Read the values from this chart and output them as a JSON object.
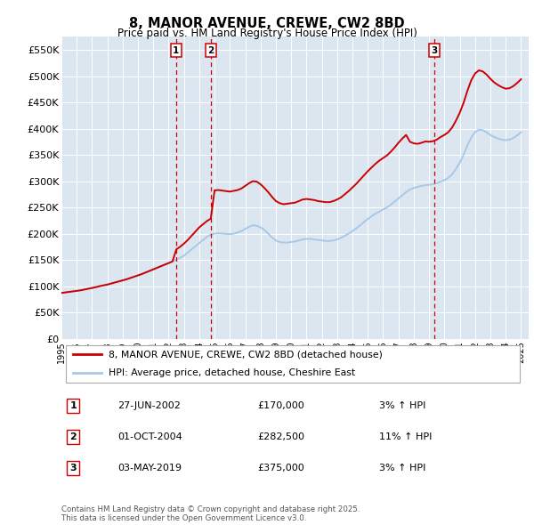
{
  "title": "8, MANOR AVENUE, CREWE, CW2 8BD",
  "subtitle": "Price paid vs. HM Land Registry's House Price Index (HPI)",
  "ylim": [
    0,
    575000
  ],
  "yticks": [
    0,
    50000,
    100000,
    150000,
    200000,
    250000,
    300000,
    350000,
    400000,
    450000,
    500000,
    550000
  ],
  "ytick_labels": [
    "£0",
    "£50K",
    "£100K",
    "£150K",
    "£200K",
    "£250K",
    "£300K",
    "£350K",
    "£400K",
    "£450K",
    "£500K",
    "£550K"
  ],
  "background_color": "#ffffff",
  "plot_bg_color": "#dce6f1",
  "grid_color": "#ffffff",
  "line1_color": "#cc0000",
  "line2_color": "#a8c8e8",
  "vline_color": "#cc0000",
  "legend_label1": "8, MANOR AVENUE, CREWE, CW2 8BD (detached house)",
  "legend_label2": "HPI: Average price, detached house, Cheshire East",
  "sales": [
    {
      "num": 1,
      "date_label": "27-JUN-2002",
      "price": 170000,
      "hpi_pct": "3",
      "x_year": 2002.49
    },
    {
      "num": 2,
      "date_label": "01-OCT-2004",
      "price": 282500,
      "hpi_pct": "11",
      "x_year": 2004.75
    },
    {
      "num": 3,
      "date_label": "03-MAY-2019",
      "price": 375000,
      "hpi_pct": "3",
      "x_year": 2019.33
    }
  ],
  "footer": "Contains HM Land Registry data © Crown copyright and database right 2025.\nThis data is licensed under the Open Government Licence v3.0.",
  "xlim": [
    1995.0,
    2025.5
  ],
  "xtick_years": [
    1995,
    1996,
    1997,
    1998,
    1999,
    2000,
    2001,
    2002,
    2003,
    2004,
    2005,
    2006,
    2007,
    2008,
    2009,
    2010,
    2011,
    2012,
    2013,
    2014,
    2015,
    2016,
    2017,
    2018,
    2019,
    2020,
    2021,
    2022,
    2023,
    2024,
    2025
  ],
  "hpi_x": [
    1995.0,
    1995.25,
    1995.5,
    1995.75,
    1996.0,
    1996.25,
    1996.5,
    1996.75,
    1997.0,
    1997.25,
    1997.5,
    1997.75,
    1998.0,
    1998.25,
    1998.5,
    1998.75,
    1999.0,
    1999.25,
    1999.5,
    1999.75,
    2000.0,
    2000.25,
    2000.5,
    2000.75,
    2001.0,
    2001.25,
    2001.5,
    2001.75,
    2002.0,
    2002.25,
    2002.5,
    2002.75,
    2003.0,
    2003.25,
    2003.5,
    2003.75,
    2004.0,
    2004.25,
    2004.5,
    2004.75,
    2005.0,
    2005.25,
    2005.5,
    2005.75,
    2006.0,
    2006.25,
    2006.5,
    2006.75,
    2007.0,
    2007.25,
    2007.5,
    2007.75,
    2008.0,
    2008.25,
    2008.5,
    2008.75,
    2009.0,
    2009.25,
    2009.5,
    2009.75,
    2010.0,
    2010.25,
    2010.5,
    2010.75,
    2011.0,
    2011.25,
    2011.5,
    2011.75,
    2012.0,
    2012.25,
    2012.5,
    2012.75,
    2013.0,
    2013.25,
    2013.5,
    2013.75,
    2014.0,
    2014.25,
    2014.5,
    2014.75,
    2015.0,
    2015.25,
    2015.5,
    2015.75,
    2016.0,
    2016.25,
    2016.5,
    2016.75,
    2017.0,
    2017.25,
    2017.5,
    2017.75,
    2018.0,
    2018.25,
    2018.5,
    2018.75,
    2019.0,
    2019.25,
    2019.5,
    2019.75,
    2020.0,
    2020.25,
    2020.5,
    2020.75,
    2021.0,
    2021.25,
    2021.5,
    2021.75,
    2022.0,
    2022.25,
    2022.5,
    2022.75,
    2023.0,
    2023.25,
    2023.5,
    2023.75,
    2024.0,
    2024.25,
    2024.5,
    2024.75,
    2025.0
  ],
  "hpi_y": [
    87000,
    88000,
    89000,
    90000,
    91000,
    92000,
    93500,
    95000,
    96500,
    98000,
    100000,
    101500,
    103000,
    105000,
    107000,
    109000,
    111000,
    113000,
    115500,
    118000,
    120500,
    123000,
    126000,
    129000,
    132000,
    135000,
    138000,
    141000,
    144000,
    147000,
    150000,
    154000,
    158000,
    164000,
    170000,
    176000,
    182000,
    188000,
    194000,
    198000,
    200000,
    200500,
    200000,
    199500,
    199000,
    200000,
    202000,
    205000,
    209000,
    213000,
    216000,
    215000,
    212000,
    207000,
    200000,
    193000,
    187000,
    184000,
    183000,
    183000,
    184000,
    185000,
    187000,
    189000,
    190000,
    190000,
    189000,
    188000,
    187000,
    186000,
    186000,
    187000,
    189000,
    192000,
    196000,
    200000,
    205000,
    210000,
    216000,
    222000,
    228000,
    233000,
    238000,
    242000,
    246000,
    250000,
    255000,
    261000,
    267000,
    273000,
    279000,
    284000,
    287000,
    289000,
    291000,
    292000,
    293000,
    294000,
    296000,
    299000,
    302000,
    306000,
    313000,
    323000,
    335000,
    350000,
    368000,
    383000,
    393000,
    398000,
    397000,
    393000,
    388000,
    384000,
    381000,
    379000,
    378000,
    379000,
    382000,
    387000,
    393000
  ],
  "price_y": [
    87000,
    88000,
    89000,
    90000,
    91000,
    92000,
    93500,
    95000,
    96500,
    98000,
    100000,
    101500,
    103000,
    105000,
    107000,
    109000,
    111000,
    113000,
    115500,
    118000,
    120500,
    123000,
    126000,
    129000,
    132000,
    135000,
    138000,
    141000,
    144000,
    147000,
    170000,
    175000,
    181000,
    188000,
    196000,
    204000,
    212000,
    218000,
    224000,
    228500,
    282500,
    283000,
    282000,
    281000,
    280000,
    281500,
    283000,
    286000,
    291000,
    296000,
    300000,
    299000,
    294000,
    287000,
    279000,
    270000,
    262000,
    258000,
    256000,
    257000,
    258000,
    259000,
    262000,
    265000,
    266000,
    265000,
    264000,
    262000,
    261000,
    260000,
    260000,
    262000,
    265000,
    269000,
    275000,
    281000,
    288000,
    295000,
    303000,
    311000,
    319000,
    326000,
    333000,
    339000,
    344000,
    349000,
    356000,
    364000,
    373000,
    381000,
    388000,
    375000,
    372000,
    371000,
    373000,
    375500,
    375000,
    376000,
    379000,
    384000,
    388000,
    393000,
    402000,
    415000,
    430000,
    449000,
    472000,
    492000,
    505000,
    511000,
    509000,
    503000,
    495000,
    488000,
    483000,
    479000,
    476000,
    477000,
    481000,
    487000,
    494000
  ]
}
